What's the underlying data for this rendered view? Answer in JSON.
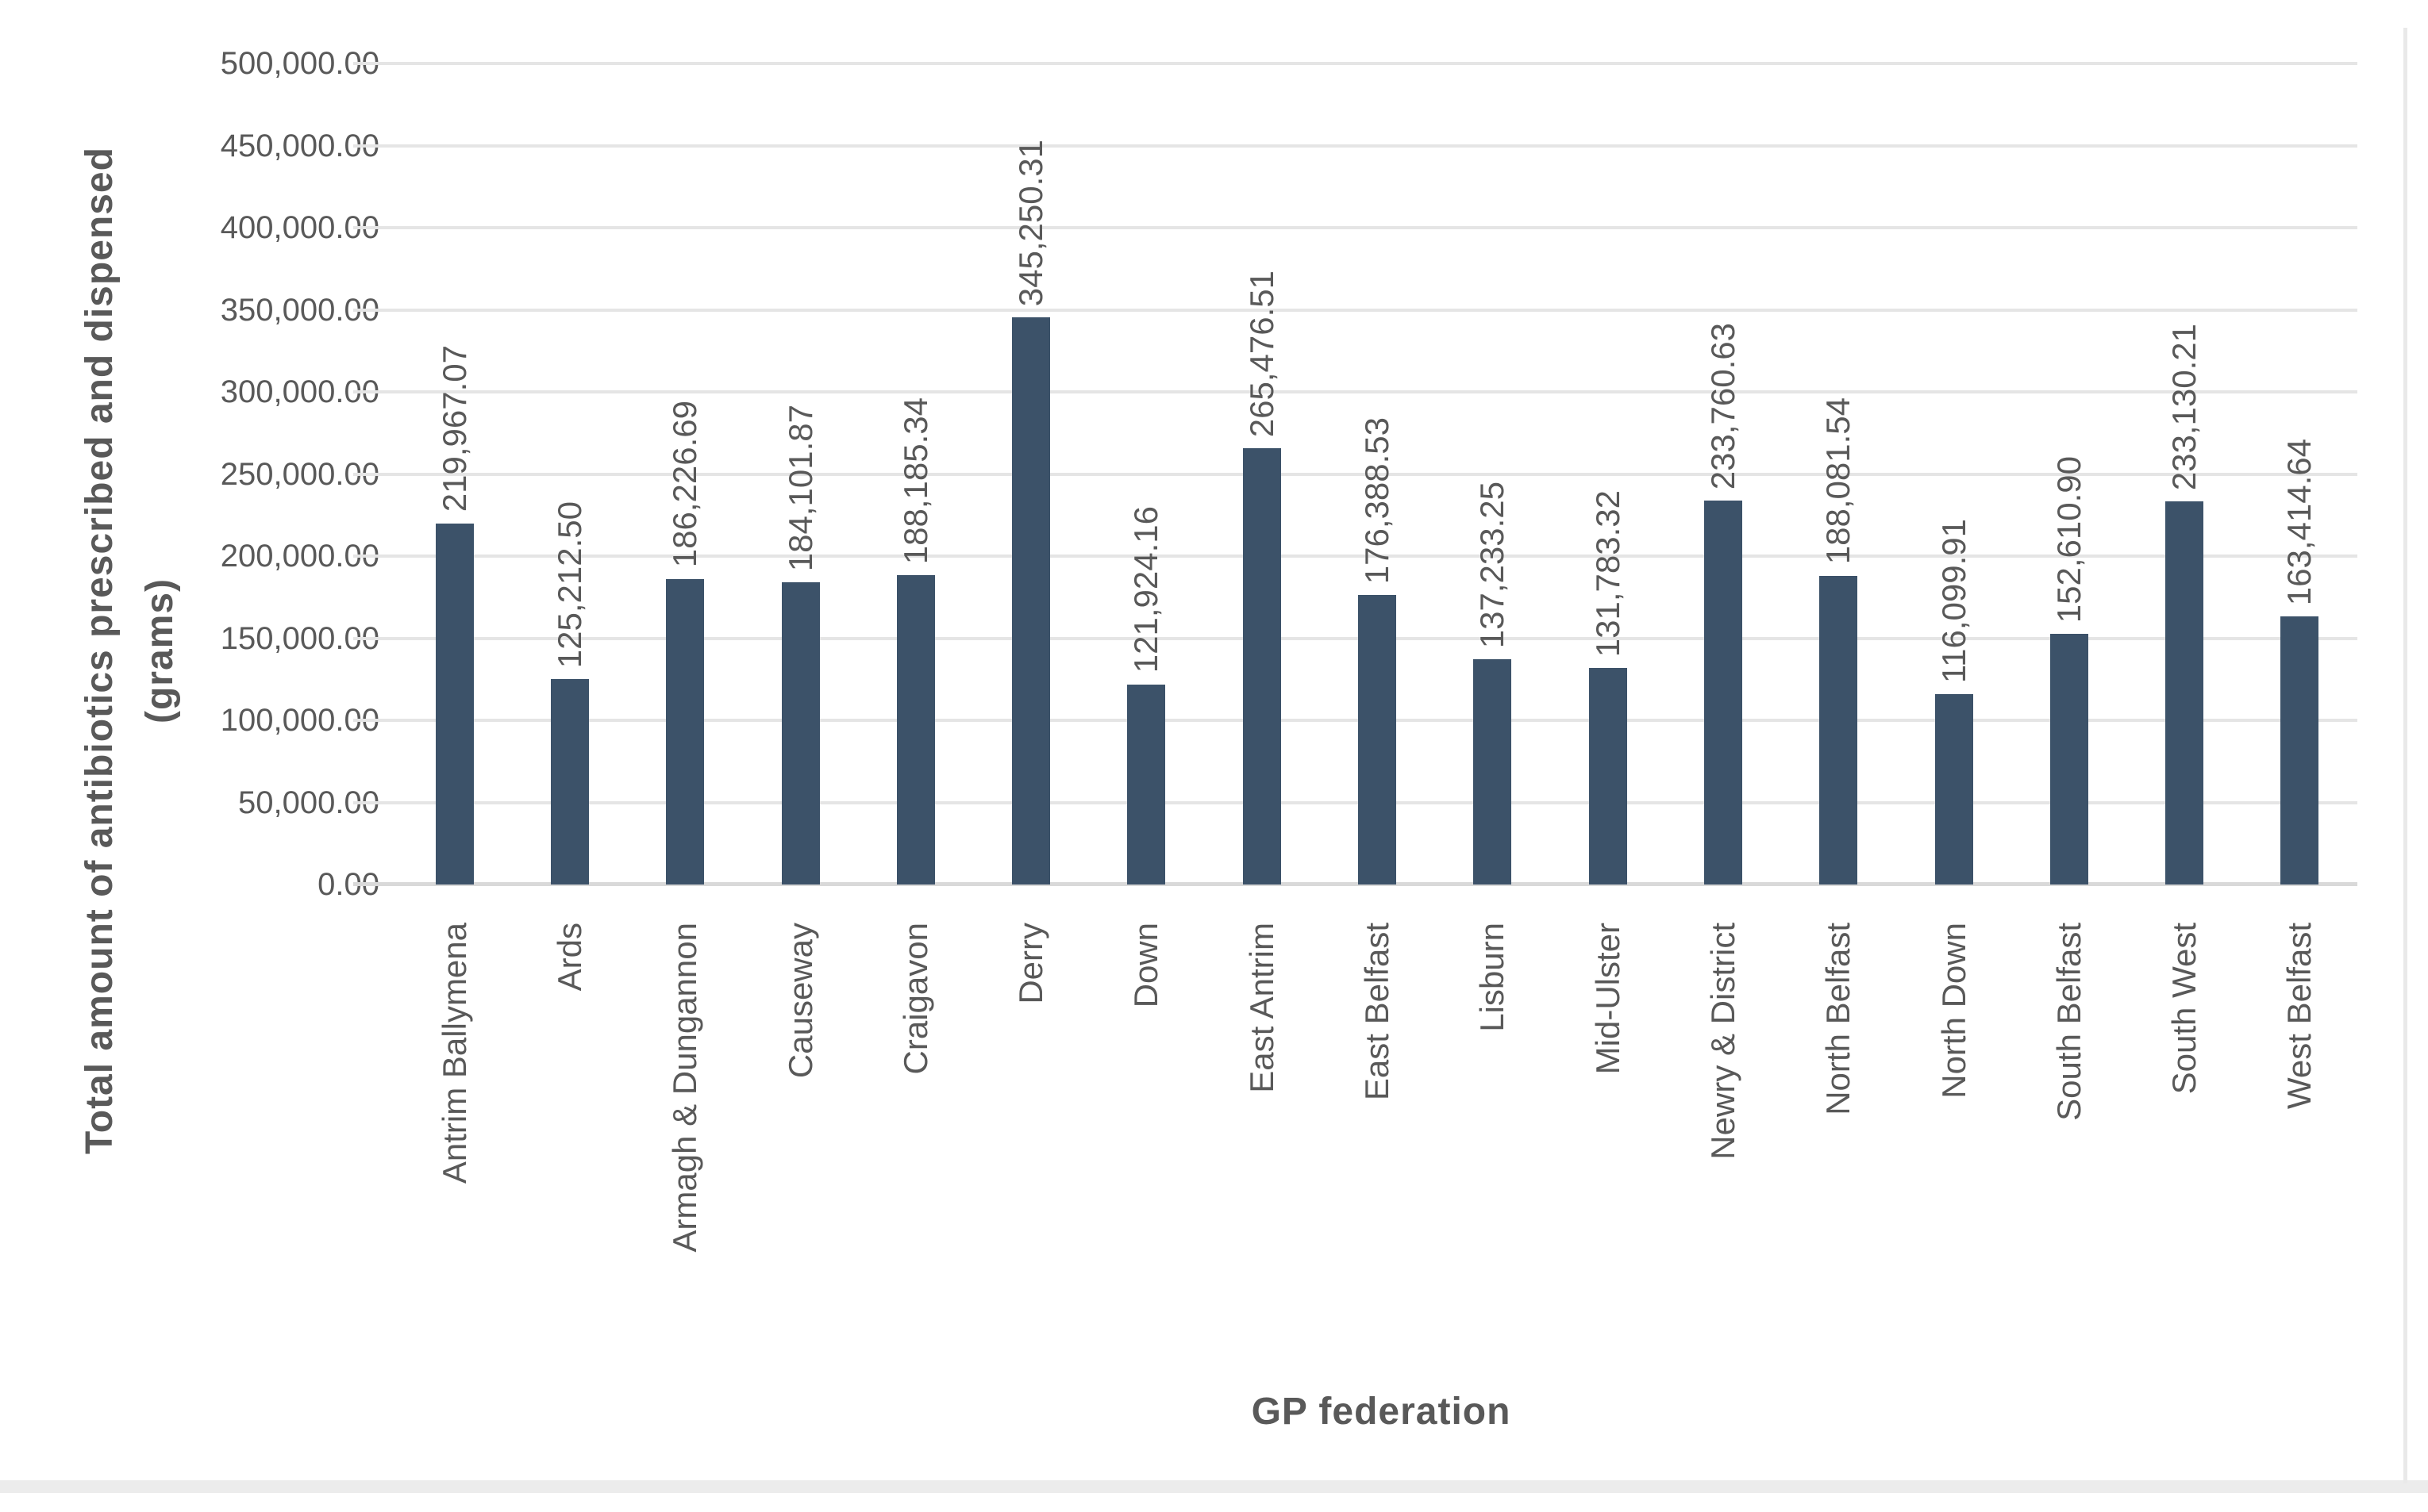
{
  "chart_data": {
    "type": "bar",
    "title": "",
    "xlabel": "GP federation",
    "ylabel": "Total amount of antibiotics prescribed and dispensed",
    "ylabel_unit": "(grams)",
    "categories": [
      "Antrim Ballymena",
      "Ards",
      "Armagh & Dungannon",
      "Causeway",
      "Craigavon",
      "Derry",
      "Down",
      "East Antrim",
      "East Belfast",
      "Lisburn",
      "Mid-Ulster",
      "Newry & District",
      "North Belfast",
      "North Down",
      "South Belfast",
      "South West",
      "West Belfast"
    ],
    "values": [
      219967.07,
      125212.5,
      186226.69,
      184101.87,
      188185.34,
      345250.31,
      121924.16,
      265476.51,
      176388.53,
      137233.25,
      131783.32,
      233760.63,
      188081.54,
      116099.91,
      152610.9,
      233130.21,
      163414.64
    ],
    "data_labels": [
      "219,967.07",
      "125,212.50",
      "186,226.69",
      "184,101.87",
      "188,185.34",
      "345,250.31",
      "121,924.16",
      "265,476.51",
      "176,388.53",
      "137,233.25",
      "131,783.32",
      "233,760.63",
      "188,081.54",
      "116,099.91",
      "152,610.90",
      "233,130.21",
      "163,414.64"
    ],
    "y_tick_labels": [
      "0.00",
      "50,000.00",
      "100,000.00",
      "150,000.00",
      "200,000.00",
      "250,000.00",
      "300,000.00",
      "350,000.00",
      "400,000.00",
      "450,000.00",
      "500,000.00"
    ],
    "ylim": [
      0,
      500000
    ],
    "ytick_step": 50000,
    "grid": true,
    "legend": false,
    "bar_color": "#3c5269",
    "text_color": "#595959",
    "grid_color": "#e5e5e5"
  }
}
